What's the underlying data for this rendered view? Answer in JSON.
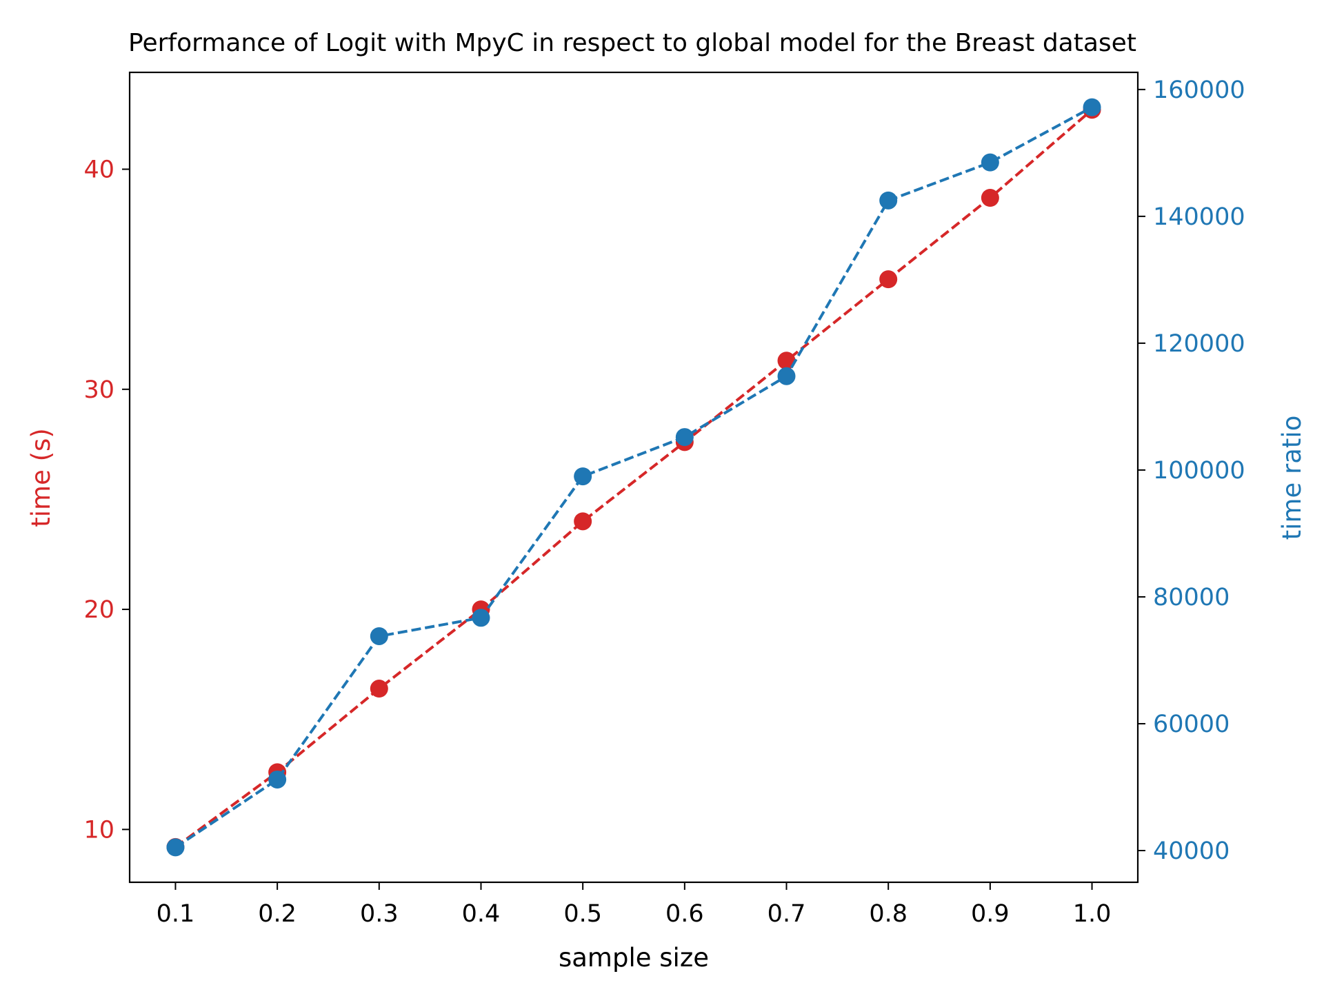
{
  "chart_data": {
    "type": "line",
    "title": "Performance of Logit with MpyC in respect to global model for the Breast dataset",
    "xlabel": "sample size",
    "x": [
      0.1,
      0.2,
      0.3,
      0.4,
      0.5,
      0.6,
      0.7,
      0.8,
      0.9,
      1.0
    ],
    "x_ticks": [
      "0.1",
      "0.2",
      "0.3",
      "0.4",
      "0.5",
      "0.6",
      "0.7",
      "0.8",
      "0.9",
      "1.0"
    ],
    "xlim": [
      0.055,
      1.045
    ],
    "left_axis": {
      "label": "time (s)",
      "color": "#d62728",
      "ticks": [
        "10",
        "20",
        "30",
        "40"
      ],
      "tick_values": [
        10,
        20,
        30,
        40
      ],
      "ylim": [
        7.6,
        44.4
      ]
    },
    "right_axis": {
      "label": "time ratio",
      "color": "#1f77b4",
      "ticks": [
        "40000",
        "60000",
        "80000",
        "100000",
        "120000",
        "140000",
        "160000"
      ],
      "tick_values": [
        40000,
        60000,
        80000,
        100000,
        120000,
        140000,
        160000
      ],
      "ylim": [
        35000,
        162700
      ]
    },
    "series": [
      {
        "axis": "left",
        "color": "#d62728",
        "line_style": "dashed",
        "marker": "circle",
        "values": [
          9.2,
          12.6,
          16.4,
          20.0,
          24.0,
          27.6,
          31.3,
          35.0,
          38.7,
          42.7
        ]
      },
      {
        "axis": "right",
        "color": "#1f77b4",
        "line_style": "dashed",
        "marker": "circle",
        "values": [
          40500,
          51200,
          73800,
          76700,
          99000,
          105200,
          114800,
          142500,
          148500,
          157200
        ]
      }
    ],
    "grid": false,
    "legend": "none"
  }
}
